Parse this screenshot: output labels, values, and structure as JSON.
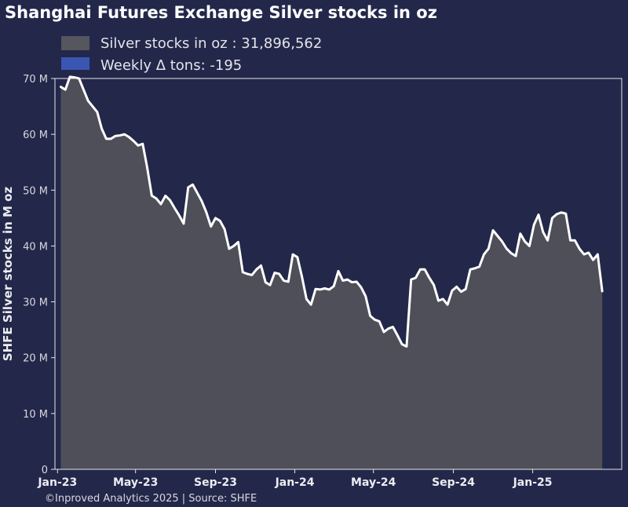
{
  "chart_data": {
    "type": "area",
    "title": "Shanghai Futures Exchange Silver stocks in oz",
    "ylabel": "SHFE Silver stocks in M oz",
    "xlabel": "",
    "y_unit_suffix": " M",
    "ylim": [
      0,
      70
    ],
    "yticks": [
      0,
      10,
      20,
      30,
      40,
      50,
      60,
      70
    ],
    "xlim": [
      "2022-12-28",
      "2025-05-18"
    ],
    "xticks": [
      {
        "date": "2023-01-01",
        "label": "Jan-23"
      },
      {
        "date": "2023-05-01",
        "label": "May-23"
      },
      {
        "date": "2023-09-01",
        "label": "Sep-23"
      },
      {
        "date": "2024-01-01",
        "label": "Jan-24"
      },
      {
        "date": "2024-05-01",
        "label": "May-24"
      },
      {
        "date": "2024-09-01",
        "label": "Sep-24"
      },
      {
        "date": "2025-01-01",
        "label": "Jan-25"
      }
    ],
    "legend": [
      {
        "label": "Silver stocks in oz : 31,896,562",
        "color": "#55565e"
      },
      {
        "label": "Weekly Δ tons: -195",
        "color": "#3b55b3"
      }
    ],
    "legend_placement": "top-left",
    "grid": false,
    "colors": {
      "background": "#23284a",
      "area_fill": "#4e4f58",
      "line": "#ffffff",
      "axes": "#e6e6ec"
    },
    "series": [
      {
        "name": "Silver stocks in oz : 31,896,562",
        "x": [
          "2023-01-06",
          "2023-01-13",
          "2023-01-20",
          "2023-01-27",
          "2023-02-03",
          "2023-02-10",
          "2023-02-17",
          "2023-02-24",
          "2023-03-03",
          "2023-03-10",
          "2023-03-17",
          "2023-03-24",
          "2023-03-31",
          "2023-04-07",
          "2023-04-14",
          "2023-04-21",
          "2023-04-28",
          "2023-05-05",
          "2023-05-12",
          "2023-05-19",
          "2023-05-26",
          "2023-06-02",
          "2023-06-09",
          "2023-06-16",
          "2023-06-23",
          "2023-06-30",
          "2023-07-07",
          "2023-07-14",
          "2023-07-21",
          "2023-07-28",
          "2023-08-04",
          "2023-08-11",
          "2023-08-18",
          "2023-08-25",
          "2023-09-01",
          "2023-09-08",
          "2023-09-15",
          "2023-09-22",
          "2023-09-29",
          "2023-10-06",
          "2023-10-13",
          "2023-10-20",
          "2023-10-27",
          "2023-11-03",
          "2023-11-10",
          "2023-11-17",
          "2023-11-24",
          "2023-12-01",
          "2023-12-08",
          "2023-12-15",
          "2023-12-22",
          "2023-12-29",
          "2024-01-05",
          "2024-01-12",
          "2024-01-19",
          "2024-01-26",
          "2024-02-02",
          "2024-02-09",
          "2024-02-16",
          "2024-02-23",
          "2024-03-01",
          "2024-03-08",
          "2024-03-15",
          "2024-03-22",
          "2024-03-29",
          "2024-04-05",
          "2024-04-12",
          "2024-04-19",
          "2024-04-26",
          "2024-05-03",
          "2024-05-10",
          "2024-05-17",
          "2024-05-24",
          "2024-05-31",
          "2024-06-07",
          "2024-06-14",
          "2024-06-21",
          "2024-06-28",
          "2024-07-05",
          "2024-07-12",
          "2024-07-19",
          "2024-07-26",
          "2024-08-02",
          "2024-08-09",
          "2024-08-16",
          "2024-08-23",
          "2024-08-30",
          "2024-09-06",
          "2024-09-13",
          "2024-09-20",
          "2024-09-27",
          "2024-10-04",
          "2024-10-11",
          "2024-10-18",
          "2024-10-25",
          "2024-11-01",
          "2024-11-08",
          "2024-11-15",
          "2024-11-22",
          "2024-11-29",
          "2024-12-06",
          "2024-12-13",
          "2024-12-20",
          "2024-12-27",
          "2025-01-03",
          "2025-01-10",
          "2025-01-17",
          "2025-01-24",
          "2025-01-31",
          "2025-02-07",
          "2025-02-14",
          "2025-02-21",
          "2025-02-28",
          "2025-03-07",
          "2025-03-14",
          "2025-03-21",
          "2025-03-28",
          "2025-04-04",
          "2025-04-11",
          "2025-04-18"
        ],
        "values": [
          68.5,
          68.0,
          70.3,
          70.2,
          70.0,
          68.0,
          66.0,
          65.0,
          64.0,
          61.0,
          59.2,
          59.2,
          59.7,
          59.8,
          60.0,
          59.5,
          58.8,
          58.0,
          58.3,
          54.0,
          49.0,
          48.5,
          47.5,
          49.0,
          48.2,
          46.8,
          45.5,
          44.0,
          50.5,
          51.0,
          49.5,
          48.0,
          46.0,
          43.5,
          45.0,
          44.5,
          43.0,
          39.5,
          40.0,
          40.7,
          35.3,
          35.0,
          34.8,
          35.8,
          36.5,
          33.5,
          33.0,
          35.2,
          35.0,
          33.8,
          33.6,
          38.5,
          38.0,
          34.5,
          30.5,
          29.5,
          32.3,
          32.2,
          32.4,
          32.2,
          32.8,
          35.5,
          33.8,
          34.0,
          33.5,
          33.6,
          32.6,
          31.0,
          27.5,
          26.8,
          26.5,
          24.6,
          25.2,
          25.5,
          24.0,
          22.4,
          22.0,
          34.0,
          34.3,
          35.8,
          35.8,
          34.3,
          33.0,
          30.2,
          30.5,
          29.5,
          32.0,
          32.7,
          31.8,
          32.3,
          35.8,
          36.0,
          36.3,
          38.5,
          39.5,
          42.8,
          41.8,
          40.8,
          39.5,
          38.7,
          38.2,
          42.2,
          40.8,
          40.0,
          43.8,
          45.6,
          42.5,
          41.0,
          45.0,
          45.7,
          46.0,
          45.8,
          41.0,
          41.0,
          39.5,
          38.5,
          38.8,
          37.5,
          38.5,
          31.9
        ]
      }
    ],
    "footer": "©Inproved Analytics 2025 | Source: SHFE"
  }
}
